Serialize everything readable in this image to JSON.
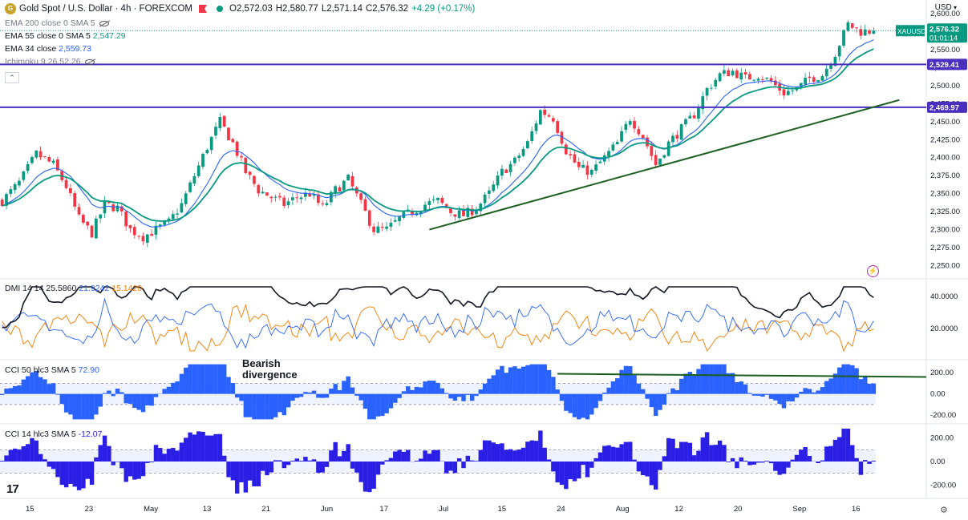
{
  "header": {
    "title": "Gold Spot / U.S. Dollar · 4h · FOREXCOM",
    "ohlc": {
      "o": "O2,572.03",
      "h": "H2,580.77",
      "l": "L2,571.14",
      "c": "C2,576.32",
      "chg": "+4.29 (+0.17%)"
    },
    "coin_glyph": "G"
  },
  "indicators": [
    {
      "label": "EMA 200 close 0 SMA 5",
      "value": "",
      "hidden": true
    },
    {
      "label": "EMA 55 close 0 SMA 5",
      "value": "2,547.29",
      "color": "#089981"
    },
    {
      "label": "EMA 34 close",
      "value": "2,559.73",
      "color": "#2962ff"
    },
    {
      "label": "Ichimoku 9 26 52 26",
      "value": "",
      "hidden": true
    }
  ],
  "currency": "USD",
  "collapse_glyph": "⌃",
  "tv_logo": "17",
  "colors": {
    "up": "#089981",
    "down": "#f23645",
    "ema55": "#089981",
    "ema34": "#2962ff",
    "level": "#4a2fbf",
    "trend": "#1b5e20",
    "cci": "#2962ff",
    "cci14": "#2b1fe6",
    "dmi_plus": "#2962ff",
    "dmi_minus": "#f57c00",
    "adx": "#131722"
  },
  "chart_data": [
    {
      "type": "candlestick",
      "name": "price",
      "ylim": [
        2235,
        2610
      ],
      "yticks": [
        2250,
        2275,
        2300,
        2325,
        2350,
        2375,
        2400,
        2425,
        2450,
        2475,
        2500,
        2525,
        2550,
        2575,
        2600
      ],
      "ytick_labels": [
        "2,250.00",
        "2,275.00",
        "2,300.00",
        "2,325.00",
        "2,350.00",
        "2,375.00",
        "2,400.00",
        "2,425.00",
        "2,450.00",
        "2,475.00",
        "2,500.00",
        "2,525.00",
        "2,550.00",
        "2,575.00",
        "2,600.00"
      ],
      "x_ticks": [
        "15",
        "23",
        "May",
        "13",
        "21",
        "Jun",
        "17",
        "Jul",
        "15",
        "24",
        "Aug",
        "12",
        "20",
        "Sep",
        "16"
      ],
      "close_path": [
        [
          0,
          2340
        ],
        [
          4,
          2365
        ],
        [
          8,
          2405
        ],
        [
          12,
          2390
        ],
        [
          15,
          2360
        ],
        [
          18,
          2315
        ],
        [
          21,
          2295
        ],
        [
          24,
          2335
        ],
        [
          27,
          2330
        ],
        [
          30,
          2300
        ],
        [
          33,
          2290
        ],
        [
          36,
          2300
        ],
        [
          39,
          2310
        ],
        [
          42,
          2335
        ],
        [
          45,
          2375
        ],
        [
          48,
          2415
        ],
        [
          51,
          2450
        ],
        [
          54,
          2420
        ],
        [
          57,
          2380
        ],
        [
          60,
          2355
        ],
        [
          63,
          2345
        ],
        [
          66,
          2335
        ],
        [
          69,
          2345
        ],
        [
          72,
          2350
        ],
        [
          75,
          2330
        ],
        [
          78,
          2355
        ],
        [
          81,
          2370
        ],
        [
          84,
          2335
        ],
        [
          87,
          2300
        ],
        [
          90,
          2300
        ],
        [
          93,
          2315
        ],
        [
          96,
          2325
        ],
        [
          99,
          2335
        ],
        [
          102,
          2340
        ],
        [
          105,
          2325
        ],
        [
          108,
          2320
        ],
        [
          111,
          2330
        ],
        [
          114,
          2350
        ],
        [
          117,
          2380
        ],
        [
          120,
          2395
        ],
        [
          123,
          2420
        ],
        [
          126,
          2465
        ],
        [
          129,
          2455
        ],
        [
          132,
          2410
        ],
        [
          135,
          2385
        ],
        [
          138,
          2380
        ],
        [
          141,
          2400
        ],
        [
          144,
          2420
        ],
        [
          147,
          2455
        ],
        [
          150,
          2430
        ],
        [
          153,
          2390
        ],
        [
          156,
          2420
        ],
        [
          159,
          2440
        ],
        [
          162,
          2460
        ],
        [
          165,
          2495
        ],
        [
          168,
          2515
        ],
        [
          171,
          2520
        ],
        [
          174,
          2510
        ],
        [
          177,
          2515
        ],
        [
          180,
          2505
        ],
        [
          183,
          2490
        ],
        [
          186,
          2495
        ],
        [
          189,
          2510
        ],
        [
          192,
          2515
        ],
        [
          195,
          2545
        ],
        [
          198,
          2585
        ],
        [
          201,
          2575
        ],
        [
          204,
          2576.32
        ]
      ],
      "last_price": "2,576.32",
      "last_symbol": "XAUUSD",
      "countdown": "01:01:14",
      "levels": [
        {
          "value": 2529.41,
          "label": "2,529.41"
        },
        {
          "value": 2469.97,
          "label": "2,469.97"
        }
      ],
      "trendline": [
        [
          100,
          2300
        ],
        [
          210,
          2480
        ]
      ],
      "ema34_last": "2,559.73",
      "ema55_last": "2,547.29"
    },
    {
      "type": "line",
      "name": "DMI 14 14",
      "legend": {
        "label": "DMI 14 14",
        "adx": "25.5860",
        "plus": "21.9242",
        "minus": "15.1420"
      },
      "ylim": [
        2,
        50
      ],
      "yticks": [
        20,
        40
      ],
      "ytick_labels": [
        "20.0000",
        "40.0000"
      ]
    },
    {
      "type": "histogram",
      "name": "CCI 50",
      "legend": {
        "label": "CCI 50 hlc3 SMA 5",
        "value": "72.90"
      },
      "ylim": [
        -260,
        300
      ],
      "band": [
        -100,
        100
      ],
      "yticks": [
        200,
        0,
        -200
      ],
      "ytick_labels": [
        "200.00",
        "0.00",
        "-200.00"
      ],
      "annotation": "Bearish divergence",
      "annotation_lines": [
        "Bearish",
        "divergence"
      ],
      "divergence_line": [
        [
          130,
          190
        ],
        [
          220,
          160
        ]
      ]
    },
    {
      "type": "histogram",
      "name": "CCI 14",
      "legend": {
        "label": "CCI 14 hlc3 SMA 5",
        "value": "-12.07"
      },
      "ylim": [
        -300,
        300
      ],
      "band": [
        -100,
        100
      ],
      "yticks": [
        200,
        0,
        -200
      ],
      "ytick_labels": [
        "200.00",
        "0.00",
        "-200.00"
      ]
    }
  ]
}
